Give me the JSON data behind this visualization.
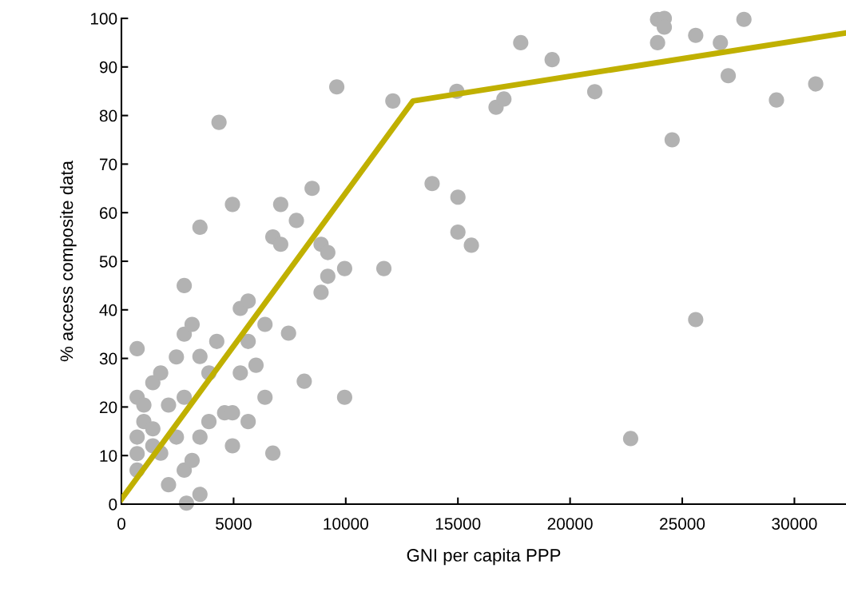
{
  "chart_data": {
    "type": "scatter",
    "xlabel": "GNI per capita PPP",
    "ylabel": "% access composite data",
    "xlim": [
      0,
      32300
    ],
    "ylim": [
      0,
      100
    ],
    "xticks": [
      0,
      5000,
      10000,
      15000,
      20000,
      25000,
      30000
    ],
    "yticks": [
      0,
      10,
      20,
      30,
      40,
      50,
      60,
      70,
      80,
      90,
      100
    ],
    "grid": false,
    "legend": false,
    "series": [
      {
        "color": "#b2b2b2",
        "marker": "circle",
        "x": [
          700,
          700,
          700,
          700,
          700,
          1000,
          1000,
          1400,
          1750,
          1400,
          1400,
          1750,
          2100,
          2100,
          2450,
          2450,
          2800,
          2800,
          3150,
          2800,
          2800,
          3150,
          2900,
          3500,
          3500,
          3900,
          3900,
          3500,
          3500,
          4250,
          4350,
          4600,
          4950,
          4950,
          4950,
          5300,
          5650,
          5300,
          5650,
          5650,
          6000,
          6400,
          6400,
          6750,
          7100,
          7100,
          6750,
          7450,
          7800,
          8150,
          8500,
          8900,
          9200,
          9200,
          8900,
          9600,
          9950,
          9950,
          11700,
          12100,
          13850,
          15000,
          15000,
          15600,
          14950,
          16700,
          17050,
          17800,
          19200,
          21100,
          22700,
          23900,
          23900,
          24200,
          24200,
          24550,
          25600,
          25600,
          26700,
          27050,
          27750,
          29200,
          30950
        ],
        "values": [
          32,
          22,
          13.8,
          10.4,
          7,
          20.4,
          17,
          25,
          27,
          15.5,
          12,
          10.5,
          20.4,
          4,
          30.3,
          13.8,
          45,
          35,
          37,
          22,
          7,
          9,
          0.2,
          30.4,
          57,
          27,
          17,
          13.8,
          2,
          33.5,
          78.6,
          18.8,
          18.8,
          61.7,
          12,
          40.3,
          41.8,
          27,
          33.5,
          17,
          28.6,
          37,
          22,
          55,
          53.5,
          61.7,
          10.5,
          35.2,
          58.4,
          25.3,
          65,
          53.5,
          51.8,
          46.9,
          43.6,
          85.9,
          48.5,
          22,
          48.5,
          83,
          66,
          63.2,
          56,
          53.3,
          85,
          81.7,
          83.4,
          95,
          91.5,
          84.9,
          13.5,
          95,
          99.8,
          100,
          98.2,
          75,
          38,
          96.5,
          95,
          88.2,
          99.8,
          83.2,
          86.5
        ]
      },
      {
        "type": "line",
        "color": "#c0b000",
        "marker": "none",
        "line_style": "solid",
        "x": [
          0,
          13000,
          32300
        ],
        "values": [
          1,
          83,
          97
        ]
      }
    ]
  }
}
